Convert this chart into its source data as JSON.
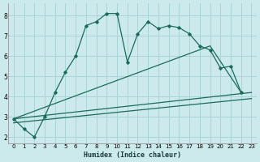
{
  "xlabel": "Humidex (Indice chaleur)",
  "bg_color": "#cceaec",
  "grid_color": "#aad4d8",
  "line_color": "#1a6b5a",
  "xlim": [
    -0.5,
    23.5
  ],
  "ylim": [
    1.7,
    8.6
  ],
  "xticks": [
    0,
    1,
    2,
    3,
    4,
    5,
    6,
    7,
    8,
    9,
    10,
    11,
    12,
    13,
    14,
    15,
    16,
    17,
    18,
    19,
    20,
    21,
    22,
    23
  ],
  "yticks": [
    2,
    3,
    4,
    5,
    6,
    7,
    8
  ],
  "series1_x": [
    0,
    1,
    2,
    3,
    4,
    5,
    6,
    7,
    8,
    9,
    10,
    11,
    12,
    13,
    14,
    15,
    16,
    17,
    18,
    19,
    20,
    21,
    22
  ],
  "series1_y": [
    2.9,
    2.4,
    2.0,
    3.0,
    4.2,
    5.2,
    6.0,
    7.5,
    7.7,
    8.1,
    8.1,
    5.7,
    7.1,
    7.7,
    7.35,
    7.5,
    7.4,
    7.1,
    6.5,
    6.3,
    5.4,
    5.5,
    4.2
  ],
  "series2_x": [
    0,
    19,
    22
  ],
  "series2_y": [
    2.9,
    6.5,
    4.2
  ],
  "series3_x": [
    0,
    23
  ],
  "series3_y": [
    2.9,
    4.2
  ],
  "series4_x": [
    0,
    23
  ],
  "series4_y": [
    2.7,
    3.9
  ]
}
